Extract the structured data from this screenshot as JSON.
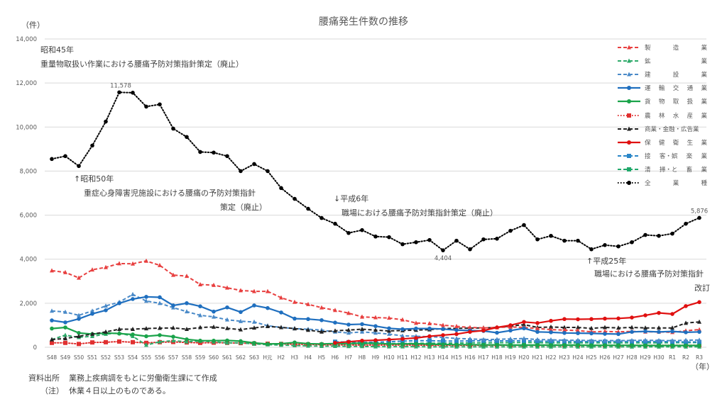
{
  "chart_data": {
    "type": "line",
    "title": "腰痛発生件数の推移",
    "ylabel": "（件）",
    "xlabel": "（年）",
    "ylim": [
      0,
      14000
    ],
    "yticks": [
      0,
      2000,
      4000,
      6000,
      8000,
      10000,
      12000,
      14000
    ],
    "ytick_labels": [
      "0",
      "2,000",
      "4,000",
      "6,000",
      "8,000",
      "10,000",
      "12,000",
      "14,000"
    ],
    "grid": true,
    "legend_position": "right",
    "categories": [
      "S48",
      "S49",
      "S50",
      "S51",
      "S52",
      "S53",
      "S54",
      "S55",
      "S56",
      "S57",
      "S58",
      "S59",
      "S60",
      "S61",
      "S62",
      "S63",
      "H元",
      "H2",
      "H3",
      "H4",
      "H5",
      "H6",
      "H7",
      "H8",
      "H9",
      "H10",
      "H11",
      "H12",
      "H13",
      "H14",
      "H15",
      "H16",
      "H17",
      "H18",
      "H19",
      "H20",
      "H21",
      "H22",
      "H23",
      "H24",
      "H25",
      "H26",
      "H27",
      "H28",
      "H29",
      "H30",
      "R1",
      "R2",
      "R3"
    ],
    "series": [
      {
        "name": "製造業",
        "legend_chars": [
          "製",
          "造",
          "業"
        ],
        "color": "#e84040",
        "style": "dashed",
        "marker": "triangle",
        "values": [
          3480,
          3400,
          3150,
          3520,
          3630,
          3800,
          3790,
          3920,
          3720,
          3280,
          3230,
          2850,
          2820,
          2700,
          2580,
          2540,
          2540,
          2250,
          2050,
          1950,
          1800,
          1680,
          1550,
          1380,
          1350,
          1330,
          1250,
          1100,
          1080,
          1000,
          950,
          900,
          880,
          900,
          920,
          900,
          850,
          800,
          780,
          760,
          700,
          720,
          700,
          720,
          700,
          700,
          680,
          750,
          800
        ]
      },
      {
        "name": "鉱業",
        "legend_chars": [
          "鉱",
          "業"
        ],
        "color": "#2eaa6a",
        "style": "dashed",
        "marker": "triangle",
        "values": [
          350,
          550,
          450,
          500,
          600,
          650,
          500,
          100,
          250,
          300,
          250,
          280,
          250,
          200,
          200,
          150,
          120,
          100,
          80,
          60,
          50,
          50,
          40,
          40,
          30,
          30,
          30,
          30,
          20,
          20,
          20,
          20,
          20,
          20,
          20,
          20,
          20,
          20,
          20,
          20,
          20,
          20,
          20,
          20,
          20,
          20,
          20,
          20,
          20
        ]
      },
      {
        "name": "建設業",
        "legend_chars": [
          "建",
          "設",
          "業"
        ],
        "color": "#4a8ac8",
        "style": "dashed",
        "marker": "triangle",
        "values": [
          1650,
          1600,
          1450,
          1650,
          1880,
          2050,
          2400,
          2100,
          2000,
          1800,
          1620,
          1450,
          1380,
          1250,
          1180,
          1150,
          980,
          900,
          850,
          820,
          780,
          700,
          650,
          700,
          650,
          600,
          520,
          500,
          480,
          450,
          400,
          380,
          350,
          360,
          380,
          400,
          350,
          340,
          320,
          320,
          300,
          310,
          300,
          310,
          320,
          310,
          300,
          320,
          330
        ]
      },
      {
        "name": "運輸交通業",
        "legend_chars": [
          "運",
          "輸",
          "交",
          "通",
          "業"
        ],
        "color": "#1f6fbf",
        "style": "solid",
        "marker": "circle",
        "values": [
          1220,
          1130,
          1290,
          1520,
          1680,
          2000,
          2190,
          2290,
          2270,
          1900,
          2000,
          1860,
          1620,
          1810,
          1600,
          1900,
          1780,
          1580,
          1300,
          1280,
          1230,
          1120,
          1030,
          1050,
          960,
          860,
          820,
          850,
          850,
          830,
          780,
          760,
          740,
          660,
          760,
          860,
          700,
          680,
          650,
          640,
          630,
          610,
          600,
          700,
          720,
          700,
          720,
          680,
          700
        ]
      },
      {
        "name": "貨物取扱業",
        "legend_chars": [
          "貨",
          "物",
          "取",
          "扱",
          "業"
        ],
        "color": "#1aa34a",
        "style": "solid",
        "marker": "circle",
        "values": [
          850,
          900,
          650,
          600,
          650,
          620,
          580,
          500,
          550,
          480,
          360,
          300,
          300,
          310,
          280,
          200,
          150,
          160,
          220,
          160,
          150,
          170,
          170,
          190,
          180,
          150,
          150,
          160,
          140,
          130,
          120,
          120,
          110,
          110,
          100,
          100,
          100,
          100,
          100,
          100,
          90,
          90,
          90,
          90,
          80,
          80,
          80,
          80,
          80
        ]
      },
      {
        "name": "農林水産業",
        "legend_chars": [
          "農",
          "林",
          "水",
          "産",
          "業"
        ],
        "color": "#e03030",
        "style": "dotted",
        "marker": "square",
        "values": [
          200,
          200,
          150,
          220,
          230,
          260,
          230,
          200,
          230,
          240,
          220,
          200,
          210,
          200,
          190,
          170,
          160,
          150,
          140,
          130,
          120,
          110,
          110,
          100,
          100,
          100,
          100,
          100,
          90,
          90,
          90,
          90,
          90,
          90,
          90,
          90,
          90,
          90,
          90,
          90,
          90,
          90,
          90,
          90,
          90,
          90,
          90,
          90,
          90
        ]
      },
      {
        "name": "商業・金融・広告業",
        "legend_chars": [
          "商業・金融・広告業"
        ],
        "color": "#222222",
        "style": "dashed",
        "marker": "triangle",
        "values": [
          350,
          400,
          500,
          600,
          700,
          820,
          820,
          850,
          870,
          880,
          820,
          900,
          920,
          860,
          800,
          880,
          950,
          900,
          850,
          780,
          700,
          750,
          780,
          820,
          780,
          740,
          760,
          780,
          800,
          850,
          860,
          870,
          880,
          900,
          960,
          1030,
          900,
          920,
          900,
          900,
          860,
          900,
          880,
          900,
          880,
          880,
          880,
          1100,
          1150
        ]
      },
      {
        "name": "保健衛生業",
        "legend_chars": [
          "保",
          "健",
          "衛",
          "生",
          "業"
        ],
        "color": "#e01010",
        "style": "solid",
        "marker": "circle",
        "values": [
          null,
          null,
          null,
          null,
          null,
          null,
          null,
          null,
          null,
          null,
          null,
          null,
          null,
          null,
          null,
          null,
          null,
          null,
          null,
          null,
          null,
          200,
          250,
          300,
          320,
          350,
          380,
          420,
          500,
          550,
          600,
          700,
          760,
          900,
          1000,
          1150,
          1100,
          1200,
          1280,
          1270,
          1280,
          1300,
          1310,
          1350,
          1450,
          1560,
          1510,
          1870,
          2050
        ]
      },
      {
        "name": "接客・娯楽業",
        "legend_chars": [
          "接",
          "客・娯",
          "楽",
          "業"
        ],
        "color": "#2a86c8",
        "style": "dashed",
        "marker": "square",
        "values": [
          null,
          null,
          null,
          null,
          null,
          null,
          null,
          null,
          null,
          null,
          null,
          null,
          null,
          null,
          null,
          null,
          null,
          null,
          null,
          null,
          null,
          250,
          230,
          220,
          230,
          250,
          280,
          300,
          300,
          280,
          280,
          290,
          300,
          290,
          290,
          300,
          280,
          270,
          270,
          260,
          260,
          260,
          270,
          260,
          260,
          260,
          250,
          240,
          240
        ]
      },
      {
        "name": "清掃・と畜業",
        "legend_chars": [
          "清",
          "掃・と",
          "畜",
          "業"
        ],
        "color": "#20a86a",
        "style": "dashed",
        "marker": "square",
        "values": [
          null,
          null,
          null,
          null,
          null,
          null,
          null,
          null,
          null,
          null,
          null,
          null,
          null,
          null,
          null,
          null,
          null,
          null,
          null,
          null,
          null,
          150,
          160,
          160,
          170,
          170,
          170,
          180,
          180,
          190,
          190,
          200,
          200,
          210,
          210,
          220,
          210,
          200,
          200,
          200,
          200,
          200,
          200,
          200,
          200,
          200,
          210,
          210,
          220
        ]
      },
      {
        "name": "全業種",
        "legend_chars": [
          "全",
          "業",
          "種"
        ],
        "color": "#000000",
        "style": "dotted",
        "marker": "circle",
        "values": [
          8550,
          8680,
          8230,
          9160,
          10250,
          11578,
          11560,
          10930,
          11030,
          9930,
          9550,
          8870,
          8840,
          8680,
          8000,
          8320,
          8000,
          7230,
          6740,
          6290,
          5870,
          5610,
          5190,
          5320,
          5030,
          5000,
          4680,
          4770,
          4870,
          4404,
          4840,
          4450,
          4900,
          4930,
          5290,
          5550,
          4900,
          5060,
          4840,
          4840,
          4450,
          4640,
          4580,
          4770,
          5100,
          5060,
          5160,
          5610,
          5876
        ]
      }
    ],
    "data_labels": [
      {
        "series": "全業種",
        "category": "S53",
        "text": "11,578"
      },
      {
        "series": "全業種",
        "category": "H14",
        "text": "4,404"
      },
      {
        "series": "全業種",
        "category": "R3",
        "text": "5,876"
      }
    ]
  },
  "annotations": {
    "s45_year": "昭和45年",
    "s45_text": "重量物取扱い作業における腰痛予防対策指針策定（廃止）",
    "s50_year": "↑昭和50年",
    "s50_text1": "重症心身障害児施設における腰痛の予防対策指針",
    "s50_text2": "策定（廃止）",
    "h6_year": "↓平成6年",
    "h6_text": "職場における腰痛予防対策指針策定（廃止）",
    "h25_year": "↑平成25年",
    "h25_text1": "職場における腰痛予防対策指針",
    "h25_text2": "改訂"
  },
  "footer": {
    "source_label": "資料出所",
    "source_text": "業務上疾病調をもとに労働衛生課にて作成",
    "note_label": "（注）",
    "note_text": "休業４日以上のものである。"
  }
}
